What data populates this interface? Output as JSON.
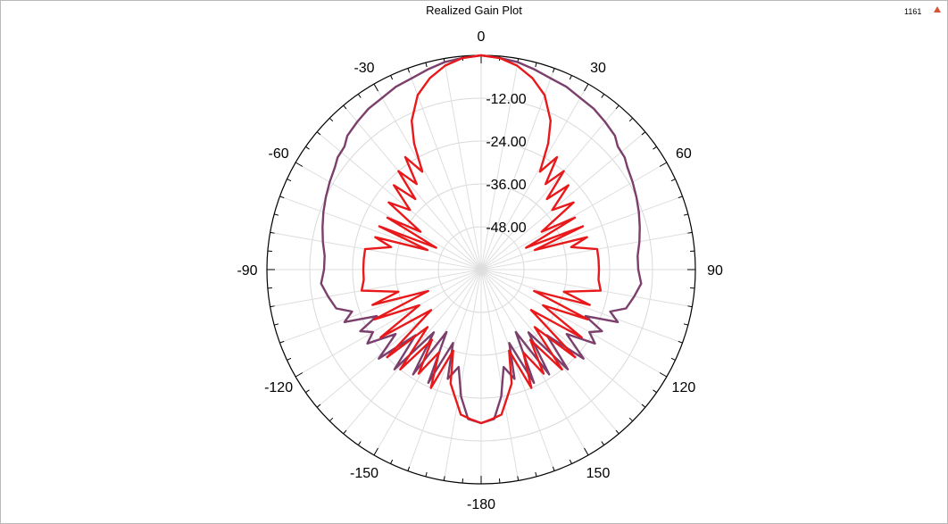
{
  "header": {
    "title": "Realized Gain Plot",
    "badge": "1161",
    "badge_color": "#d9533b"
  },
  "chart_data": {
    "type": "polar",
    "title": "Realized Gain Plot",
    "theta_unit": "deg",
    "theta_zero": "top",
    "theta_direction": "clockwise",
    "r_range": [
      -60,
      0
    ],
    "r_ticks": [
      -48.0,
      -36.0,
      -24.0,
      -12.0
    ],
    "r_tick_labels": [
      "-48.00",
      "-36.00",
      "-24.00",
      "-12.00"
    ],
    "r_label_at_center": "0",
    "theta_ticks": [
      0,
      30,
      60,
      90,
      120,
      150,
      180,
      -150,
      -120,
      -90,
      -60,
      -30
    ],
    "theta_tick_labels": [
      "0",
      "30",
      "60",
      "90",
      "120",
      "150",
      "-180",
      "-150",
      "-120",
      "-90",
      "-60",
      "-30"
    ],
    "grid": true,
    "series": [
      {
        "color": "#7b3f6b",
        "points": [
          [
            0,
            0
          ],
          [
            5,
            -0.5
          ],
          [
            10,
            -1
          ],
          [
            15,
            -2
          ],
          [
            20,
            -3
          ],
          [
            25,
            -3.5
          ],
          [
            30,
            -4.5
          ],
          [
            35,
            -5
          ],
          [
            40,
            -6
          ],
          [
            45,
            -7
          ],
          [
            48,
            -8.5
          ],
          [
            52,
            -9
          ],
          [
            55,
            -10
          ],
          [
            60,
            -11
          ],
          [
            65,
            -12
          ],
          [
            70,
            -13
          ],
          [
            75,
            -14
          ],
          [
            80,
            -15
          ],
          [
            85,
            -16
          ],
          [
            90,
            -16
          ],
          [
            95,
            -15
          ],
          [
            100,
            -16.5
          ],
          [
            105,
            -18
          ],
          [
            108,
            -22
          ],
          [
            111,
            -19
          ],
          [
            114,
            -28
          ],
          [
            117,
            -22
          ],
          [
            120,
            -25
          ],
          [
            123,
            -22
          ],
          [
            127,
            -30
          ],
          [
            131,
            -22
          ],
          [
            135,
            -34
          ],
          [
            139,
            -23
          ],
          [
            143,
            -38
          ],
          [
            147,
            -25
          ],
          [
            151,
            -40
          ],
          [
            155,
            -25
          ],
          [
            159,
            -38
          ],
          [
            163,
            -28
          ],
          [
            167,
            -32
          ],
          [
            171,
            -24
          ],
          [
            175,
            -18
          ],
          [
            180,
            -17
          ],
          [
            -175,
            -18
          ],
          [
            -171,
            -24
          ],
          [
            -167,
            -32
          ],
          [
            -163,
            -28
          ],
          [
            -159,
            -38
          ],
          [
            -155,
            -25
          ],
          [
            -151,
            -40
          ],
          [
            -147,
            -25
          ],
          [
            -143,
            -38
          ],
          [
            -139,
            -23
          ],
          [
            -135,
            -34
          ],
          [
            -131,
            -22
          ],
          [
            -127,
            -30
          ],
          [
            -123,
            -22
          ],
          [
            -120,
            -25
          ],
          [
            -117,
            -22
          ],
          [
            -114,
            -28
          ],
          [
            -111,
            -19
          ],
          [
            -108,
            -22
          ],
          [
            -105,
            -18
          ],
          [
            -100,
            -16.5
          ],
          [
            -95,
            -15
          ],
          [
            -90,
            -16
          ],
          [
            -85,
            -16
          ],
          [
            -80,
            -15
          ],
          [
            -75,
            -14
          ],
          [
            -70,
            -13
          ],
          [
            -65,
            -12
          ],
          [
            -60,
            -11
          ],
          [
            -55,
            -10
          ],
          [
            -52,
            -9
          ],
          [
            -48,
            -8.5
          ],
          [
            -45,
            -7
          ],
          [
            -40,
            -6
          ],
          [
            -35,
            -5
          ],
          [
            -30,
            -4.5
          ],
          [
            -25,
            -3.5
          ],
          [
            -20,
            -3
          ],
          [
            -15,
            -2
          ],
          [
            -10,
            -1
          ],
          [
            -5,
            -0.5
          ]
        ]
      },
      {
        "color": "#e8191b",
        "points": [
          [
            0,
            0
          ],
          [
            5,
            -0.5
          ],
          [
            10,
            -2
          ],
          [
            15,
            -4.5
          ],
          [
            20,
            -8
          ],
          [
            25,
            -14
          ],
          [
            28,
            -20
          ],
          [
            31,
            -28
          ],
          [
            34,
            -22
          ],
          [
            37,
            -30
          ],
          [
            40,
            -24
          ],
          [
            43,
            -33
          ],
          [
            46,
            -26
          ],
          [
            50,
            -34
          ],
          [
            54,
            -28
          ],
          [
            58,
            -40
          ],
          [
            61,
            -30
          ],
          [
            64,
            -46
          ],
          [
            67,
            -29
          ],
          [
            70,
            -44
          ],
          [
            73,
            -29
          ],
          [
            76,
            -34
          ],
          [
            80,
            -27
          ],
          [
            85,
            -27
          ],
          [
            90,
            -27
          ],
          [
            95,
            -27
          ],
          [
            100,
            -26
          ],
          [
            105,
            -36
          ],
          [
            108,
            -28
          ],
          [
            112,
            -44
          ],
          [
            115,
            -27
          ],
          [
            120,
            -40
          ],
          [
            124,
            -26
          ],
          [
            129,
            -42
          ],
          [
            133,
            -24
          ],
          [
            137,
            -38
          ],
          [
            141,
            -24
          ],
          [
            145,
            -36
          ],
          [
            149,
            -26
          ],
          [
            153,
            -34
          ],
          [
            157,
            -24
          ],
          [
            161,
            -36
          ],
          [
            165,
            -27
          ],
          [
            168,
            -24
          ],
          [
            172,
            -19
          ],
          [
            176,
            -18
          ],
          [
            180,
            -17
          ],
          [
            -176,
            -18
          ],
          [
            -172,
            -19
          ],
          [
            -168,
            -24
          ],
          [
            -165,
            -27
          ],
          [
            -161,
            -36
          ],
          [
            -157,
            -24
          ],
          [
            -153,
            -34
          ],
          [
            -149,
            -26
          ],
          [
            -145,
            -36
          ],
          [
            -141,
            -24
          ],
          [
            -137,
            -38
          ],
          [
            -133,
            -24
          ],
          [
            -129,
            -42
          ],
          [
            -124,
            -26
          ],
          [
            -120,
            -40
          ],
          [
            -115,
            -27
          ],
          [
            -112,
            -44
          ],
          [
            -108,
            -28
          ],
          [
            -105,
            -36
          ],
          [
            -100,
            -26
          ],
          [
            -95,
            -27
          ],
          [
            -90,
            -27
          ],
          [
            -85,
            -27
          ],
          [
            -80,
            -27
          ],
          [
            -76,
            -34
          ],
          [
            -73,
            -29
          ],
          [
            -70,
            -44
          ],
          [
            -67,
            -29
          ],
          [
            -64,
            -46
          ],
          [
            -61,
            -30
          ],
          [
            -58,
            -40
          ],
          [
            -54,
            -28
          ],
          [
            -50,
            -34
          ],
          [
            -46,
            -26
          ],
          [
            -43,
            -33
          ],
          [
            -40,
            -24
          ],
          [
            -37,
            -30
          ],
          [
            -34,
            -22
          ],
          [
            -31,
            -28
          ],
          [
            -28,
            -20
          ],
          [
            -25,
            -14
          ],
          [
            -20,
            -8
          ],
          [
            -15,
            -4.5
          ],
          [
            -10,
            -2
          ],
          [
            -5,
            -0.5
          ]
        ]
      }
    ]
  }
}
